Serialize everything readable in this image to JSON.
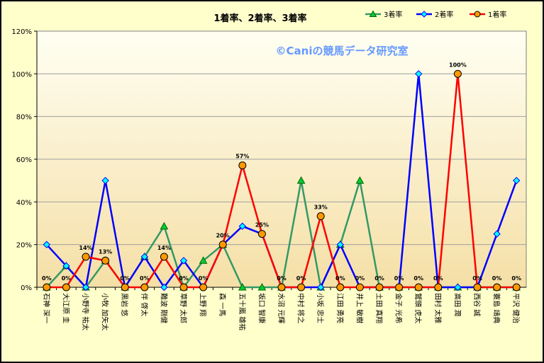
{
  "chart_data": {
    "type": "line",
    "title": "1着率、2着率、3着率",
    "watermark": "©Caniの競馬データ研究室",
    "ylim": [
      0,
      120
    ],
    "yticks": [
      "0%",
      "20%",
      "40%",
      "60%",
      "80%",
      "100%",
      "120%"
    ],
    "categories": [
      "石神 深一",
      "大江原 圭",
      "小野寺 祐太",
      "小牧 加矢太",
      "黒岩 悠",
      "伴 啓太",
      "難波 剛健",
      "草野 太郎",
      "上野 翔",
      "森 一馬",
      "五十嵐 雄祐",
      "坂口 智康",
      "水沼 元輝",
      "中村 将之",
      "小坂 忠士",
      "江田 勇亮",
      "井上 敏樹",
      "土田 真翔",
      "金子 光希",
      "鷲頭 虎太",
      "田村 太雅",
      "高田 潤",
      "西谷 誠",
      "蓑島 靖典",
      "平沢 健治"
    ],
    "series": [
      {
        "name": "3着率",
        "color": "#339966",
        "marker": "triangle",
        "marker_color": "#00cc33",
        "values": [
          0,
          10,
          0,
          12.5,
          0,
          14.3,
          28.6,
          0,
          12.5,
          20,
          0,
          0,
          0,
          50,
          0,
          20,
          50,
          0,
          0,
          0,
          0,
          0,
          0,
          0,
          0
        ]
      },
      {
        "name": "2着率",
        "color": "#0000ff",
        "marker": "diamond",
        "marker_color": "#00ffff",
        "values": [
          20,
          10,
          0,
          50,
          0,
          14.3,
          0,
          12.5,
          0,
          20,
          28.6,
          25,
          0,
          0,
          0,
          20,
          0,
          0,
          0,
          100,
          0,
          0,
          0,
          25,
          50
        ]
      },
      {
        "name": "1着率",
        "color": "#ff0000",
        "marker": "circle",
        "marker_color": "#ff9900",
        "values": [
          0,
          0,
          14.3,
          12.5,
          0,
          0,
          14.3,
          0,
          0,
          20,
          57.1,
          25,
          0,
          0,
          33.3,
          0,
          0,
          0,
          0,
          0,
          0,
          100,
          0,
          0,
          0
        ]
      }
    ],
    "data_labels": [
      "0%",
      "0%",
      "14%",
      "13%",
      "0%",
      "0%",
      "14%",
      "0%",
      "0%",
      "20%",
      "57%",
      "25%",
      "0%",
      "0%",
      "33%",
      "0%",
      "0%",
      "0%",
      "0%",
      "0%",
      "0%",
      "100%",
      "0%",
      "0%",
      "0%"
    ],
    "legend_position": "top-right",
    "grid": "horizontal"
  }
}
